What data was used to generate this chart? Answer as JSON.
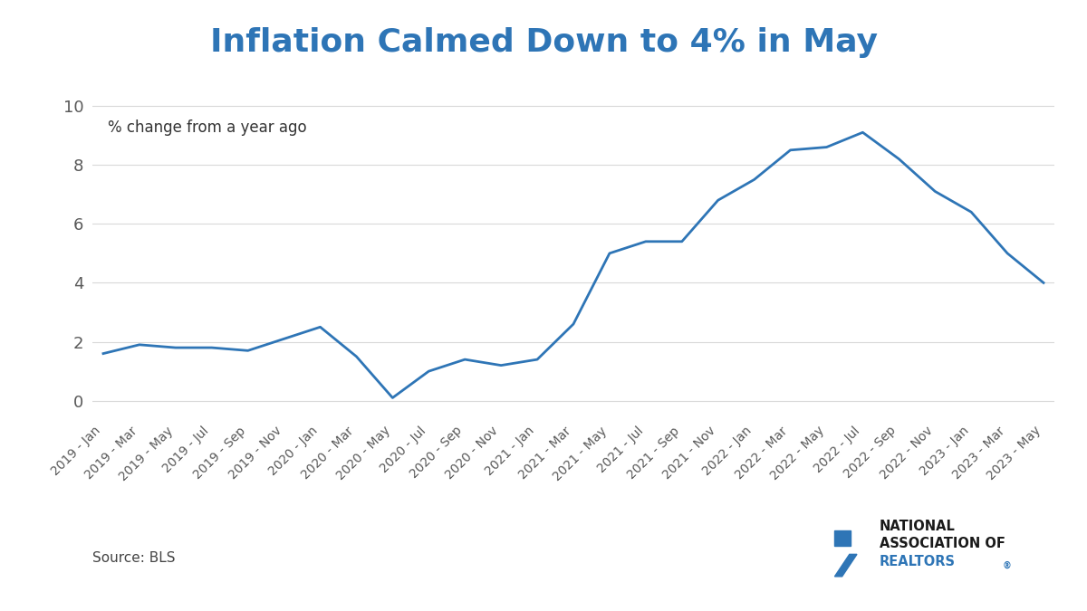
{
  "title": "Inflation Calmed Down to 4% in May",
  "subtitle": "% change from a year ago",
  "source": "Source: BLS",
  "line_color": "#2e75b6",
  "title_color": "#2e75b6",
  "background_color": "#ffffff",
  "ylim": [
    -0.5,
    11.0
  ],
  "yticks": [
    0,
    2,
    4,
    6,
    8,
    10
  ],
  "x_labels": [
    "2019 - Jan",
    "2019 - Mar",
    "2019 - May",
    "2019 - Jul",
    "2019 - Sep",
    "2019 - Nov",
    "2020 - Jan",
    "2020 - Mar",
    "2020 - May",
    "2020 - Jul",
    "2020 - Sep",
    "2020 - Nov",
    "2021 - Jan",
    "2021 - Mar",
    "2021 - May",
    "2021 - Jul",
    "2021 - Sep",
    "2021 - Nov",
    "2022 - Jan",
    "2022 - Mar",
    "2022 - May",
    "2022 - Jul",
    "2022 - Sep",
    "2022 - Nov",
    "2023 - Jan",
    "2023 - Mar",
    "2023 - May"
  ],
  "values": [
    1.6,
    1.9,
    1.8,
    1.8,
    1.7,
    2.1,
    2.5,
    1.5,
    0.1,
    1.0,
    1.4,
    1.2,
    1.4,
    2.6,
    5.0,
    5.4,
    5.4,
    6.8,
    7.5,
    8.5,
    8.6,
    9.1,
    8.2,
    7.1,
    6.4,
    5.0,
    4.0
  ],
  "nar_logo_color": "#2e75b6",
  "line_width": 2.0,
  "grid_color": "#d9d9d9",
  "tick_color": "#595959",
  "source_fontsize": 11,
  "subtitle_fontsize": 12,
  "title_fontsize": 26,
  "ytick_fontsize": 13,
  "xtick_fontsize": 10
}
